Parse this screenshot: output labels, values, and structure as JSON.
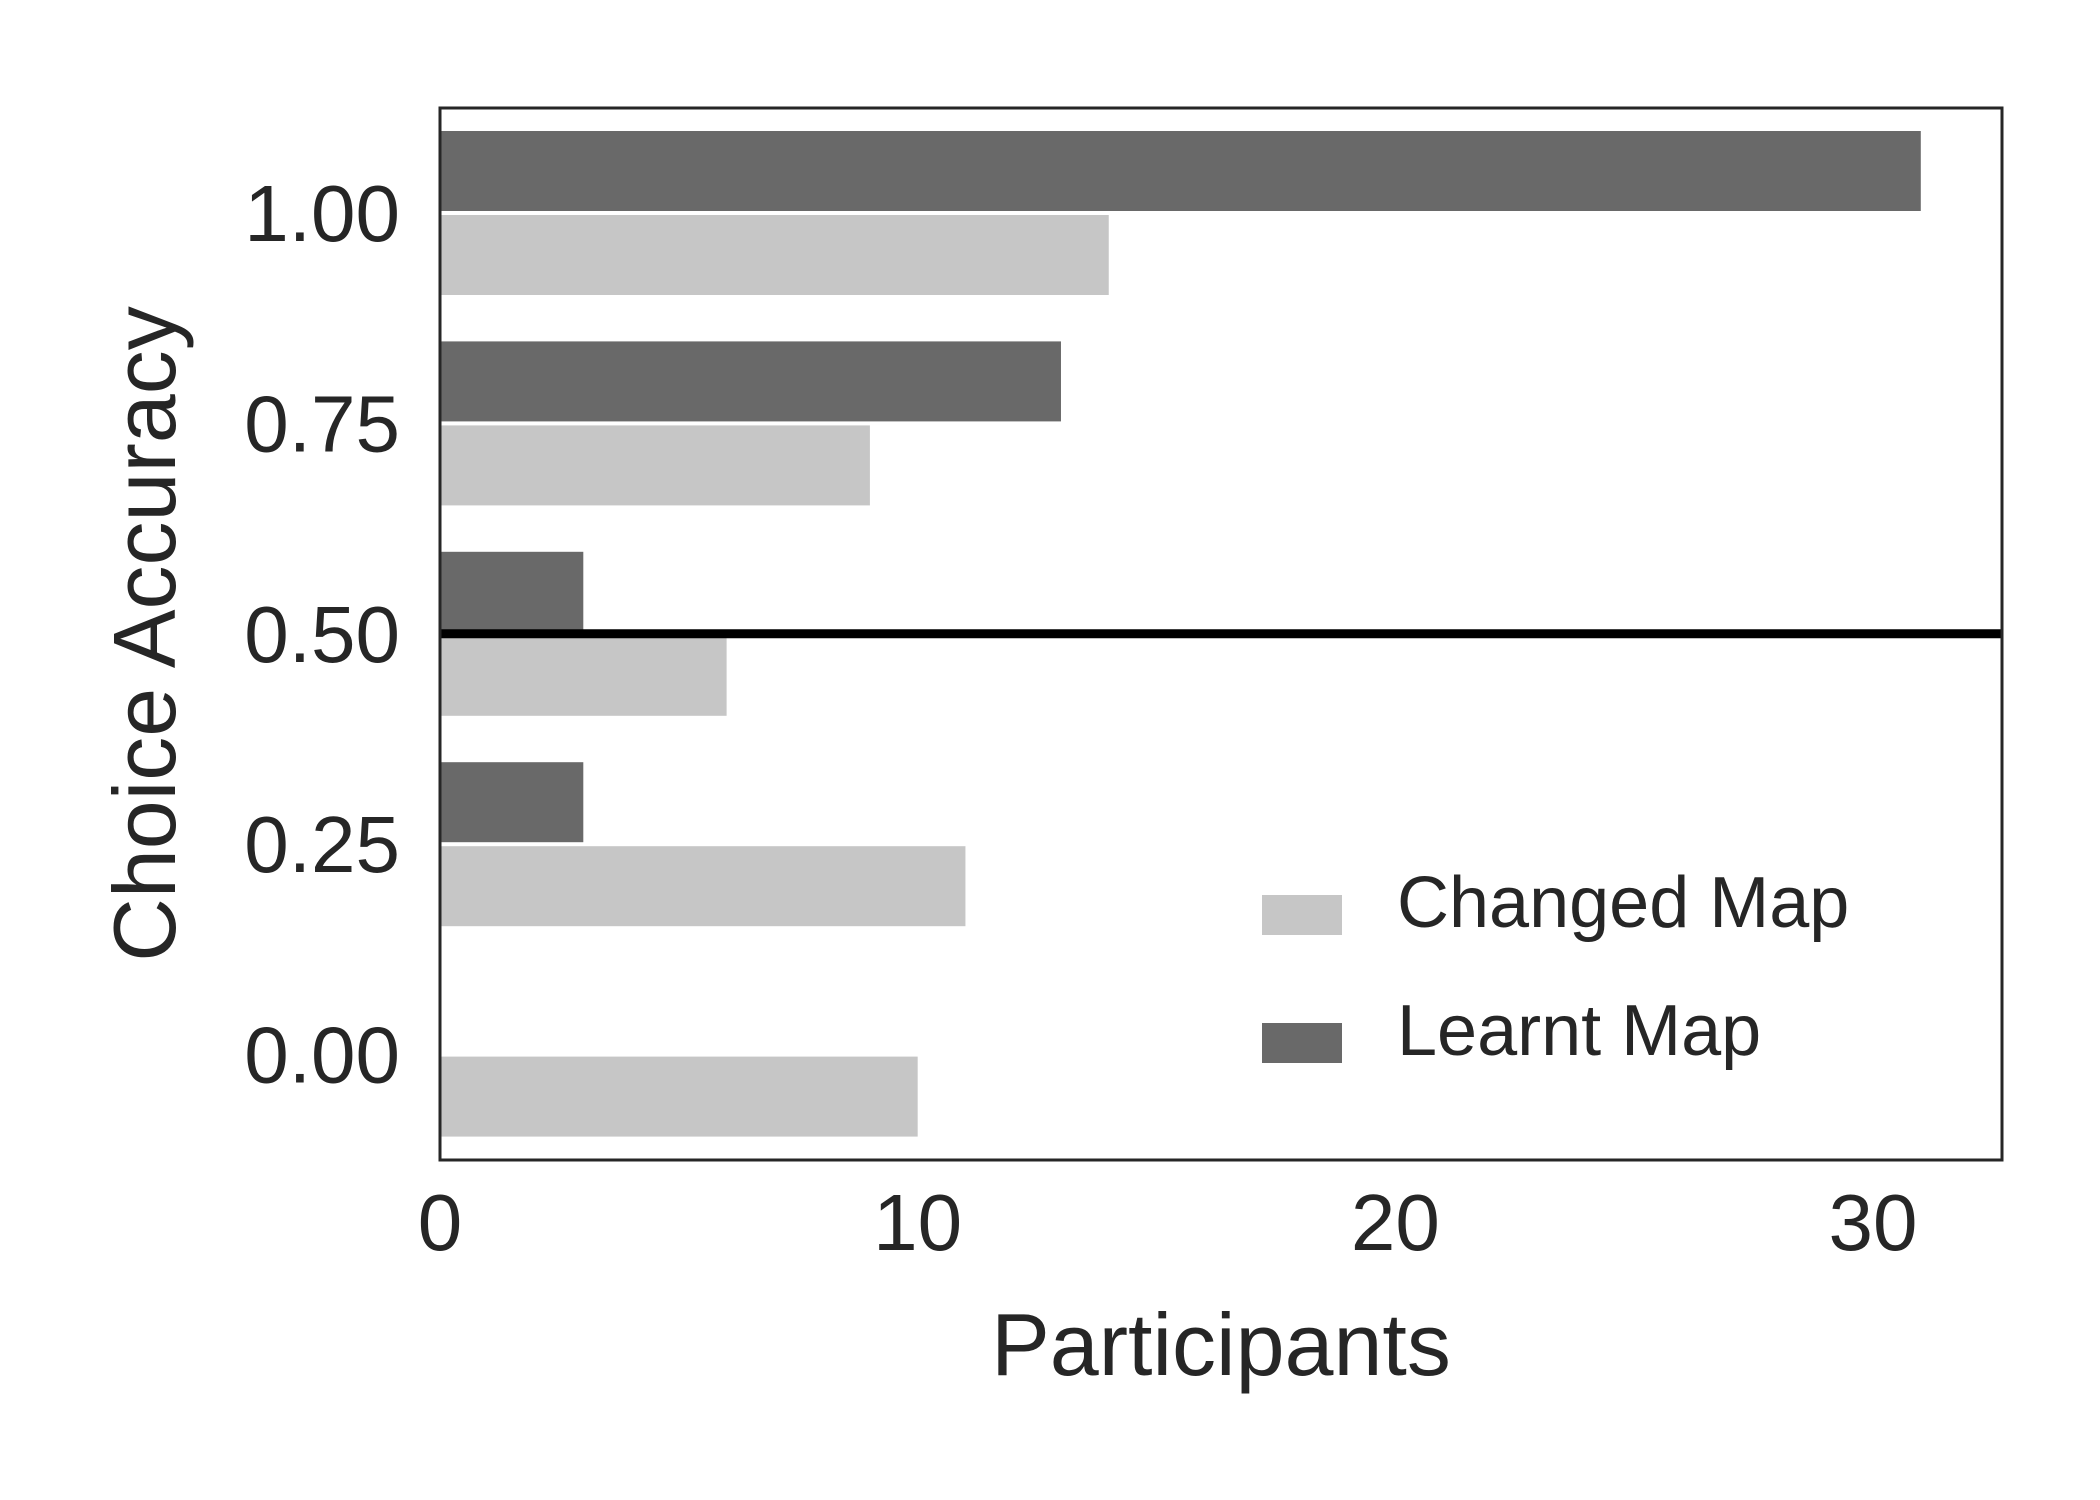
{
  "chart_data": {
    "type": "bar",
    "orientation": "horizontal",
    "xlabel": "Participants",
    "ylabel": "Choice Accuracy",
    "categories": [
      "1.00",
      "0.75",
      "0.50",
      "0.25",
      "0.00"
    ],
    "series": [
      {
        "name": "Learnt Map",
        "values": [
          31,
          13,
          3,
          3,
          0
        ],
        "color": "#696969"
      },
      {
        "name": "Changed Map",
        "values": [
          14,
          9,
          6,
          11,
          10
        ],
        "color": "#c6c6c6"
      }
    ],
    "xlim": [
      0,
      32.7
    ],
    "xticks": [
      "0",
      "10",
      "20",
      "30"
    ],
    "xtick_values": [
      0,
      10,
      20,
      30
    ],
    "reference_line": {
      "y": 0.5,
      "color": "#000000"
    },
    "grid": false,
    "legend": {
      "placement": "lower-right",
      "entries": [
        {
          "label": "Changed Map",
          "color": "#c6c6c6"
        },
        {
          "label": "Learnt Map",
          "color": "#696969"
        }
      ]
    }
  }
}
